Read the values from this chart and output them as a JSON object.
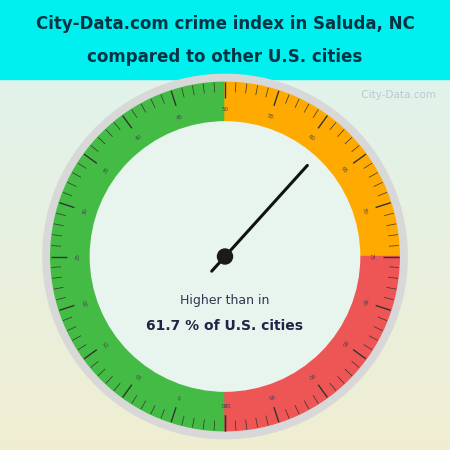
{
  "title_line1": "City-Data.com crime index in Saluda, NC",
  "title_line2": "compared to other U.S. cities",
  "title_bg_color": "#00f0f0",
  "main_bg_color_top": "#e8f5f0",
  "main_bg_color_bottom": "#d8ede0",
  "green_color": "#44bb44",
  "orange_color": "#ffaa00",
  "red_color": "#ee5555",
  "outer_ring_color": "#d8d8d8",
  "inner_fill_color": "#e8f5ee",
  "needle_value": 61.7,
  "annotation_line1": "Higher than in",
  "annotation_line2": "61.7 % of U.S. cities",
  "watermark": " City-Data.com",
  "green_range": [
    0,
    50
  ],
  "orange_range": [
    50,
    75
  ],
  "red_range": [
    75,
    100
  ],
  "title_fontsize": 12,
  "annotation_fontsize1": 9,
  "annotation_fontsize2": 10
}
